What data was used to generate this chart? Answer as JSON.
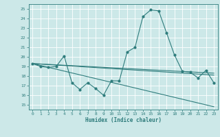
{
  "xlabel": "Humidex (Indice chaleur)",
  "ylabel": "",
  "bg_color": "#cce8e8",
  "grid_color": "#ffffff",
  "line_color": "#2e7c7c",
  "xlim": [
    -0.5,
    23.5
  ],
  "ylim": [
    14.5,
    25.5
  ],
  "xticks": [
    0,
    1,
    2,
    3,
    4,
    5,
    6,
    7,
    8,
    9,
    10,
    11,
    12,
    13,
    14,
    15,
    16,
    17,
    18,
    19,
    20,
    21,
    22,
    23
  ],
  "yticks": [
    15,
    16,
    17,
    18,
    19,
    20,
    21,
    22,
    23,
    24,
    25
  ],
  "series1_x": [
    0,
    1,
    2,
    3,
    4,
    5,
    6,
    7,
    8,
    9,
    10,
    11,
    12,
    13,
    14,
    15,
    16,
    17,
    18,
    19,
    20,
    21,
    22,
    23
  ],
  "series1_y": [
    19.3,
    19.0,
    18.9,
    19.0,
    20.1,
    17.3,
    16.6,
    17.3,
    16.7,
    16.0,
    17.5,
    17.5,
    20.5,
    21.0,
    24.2,
    24.9,
    24.8,
    22.5,
    20.2,
    18.5,
    18.4,
    17.8,
    18.6,
    17.3
  ],
  "series2_x": [
    0,
    23
  ],
  "series2_y": [
    19.3,
    14.8
  ],
  "series3_x": [
    0,
    23
  ],
  "series3_y": [
    19.3,
    18.1
  ],
  "series4_x": [
    0,
    23
  ],
  "series4_y": [
    19.3,
    18.3
  ]
}
